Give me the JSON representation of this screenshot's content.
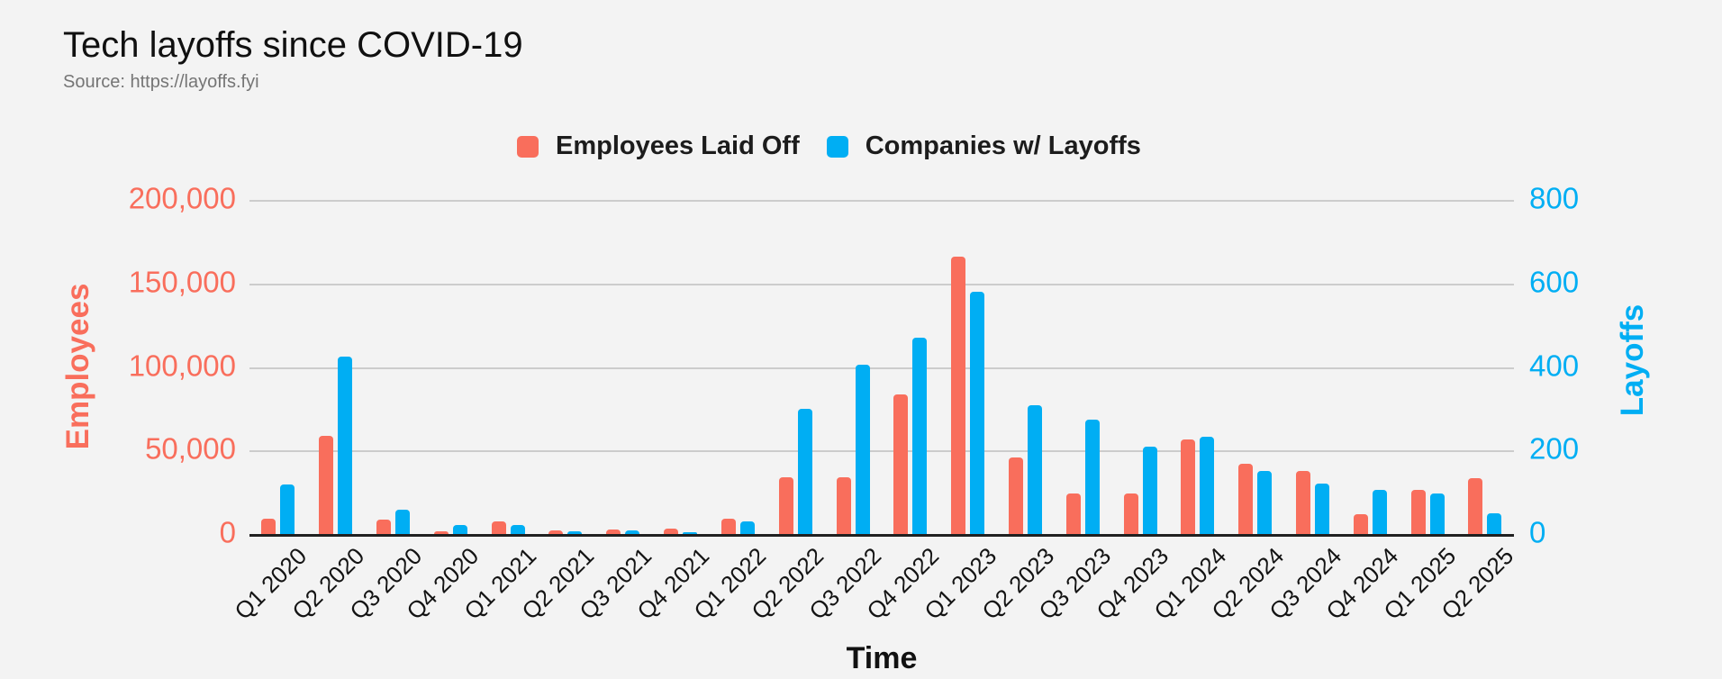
{
  "header": {
    "title": "Tech layoffs since COVID-19",
    "source": "Source: https://layoffs.fyi"
  },
  "colors": {
    "background": "#f3f3f3",
    "employees": "#F96E5C",
    "companies": "#00AEF3",
    "gridline": "#cccccc",
    "baseline": "#202020",
    "text": "#1c1c1c",
    "source_text": "#757575"
  },
  "legend": {
    "items": [
      {
        "label": "Employees Laid Off",
        "color": "#F96E5C"
      },
      {
        "label": "Companies w/ Layoffs",
        "color": "#00AEF3"
      }
    ]
  },
  "chart_data": {
    "type": "bar",
    "title": "Tech layoffs since COVID-19",
    "subtitle": "Source: https://layoffs.fyi",
    "xlabel": "Time",
    "grid": true,
    "legend_position": "top",
    "categories": [
      "Q1 2020",
      "Q2 2020",
      "Q3 2020",
      "Q4 2020",
      "Q1 2021",
      "Q2 2021",
      "Q3 2021",
      "Q4 2021",
      "Q1 2022",
      "Q2 2022",
      "Q3 2022",
      "Q4 2022",
      "Q1 2023",
      "Q2 2023",
      "Q3 2023",
      "Q4 2023",
      "Q1 2024",
      "Q2 2024",
      "Q3 2024",
      "Q4 2024",
      "Q1 2025",
      "Q2 2025"
    ],
    "y_left": {
      "label": "Employees",
      "color": "#F96E5C",
      "min": 0,
      "max": 200000,
      "ticks": [
        "200,000",
        "150,000",
        "100,000",
        "50,000",
        "0"
      ]
    },
    "y_right": {
      "label": "Layoffs",
      "color": "#00AEF3",
      "min": 0,
      "max": 800,
      "ticks": [
        "800",
        "600",
        "400",
        "200",
        "0"
      ]
    },
    "series": [
      {
        "name": "Employees Laid Off",
        "axis": "left",
        "color": "#F96E5C",
        "values": [
          9000,
          58600,
          8700,
          1400,
          7500,
          2400,
          2500,
          3000,
          9400,
          34000,
          34000,
          83500,
          166000,
          45700,
          24200,
          24200,
          56500,
          42000,
          37600,
          11800,
          26300,
          33300
        ]
      },
      {
        "name": "Companies w/ Layoffs",
        "axis": "right",
        "color": "#00AEF3",
        "values": [
          118,
          424,
          58,
          22,
          21,
          6,
          9,
          4,
          31,
          300,
          406,
          471,
          580,
          308,
          273,
          209,
          234,
          152,
          120,
          105,
          97,
          49
        ]
      }
    ]
  }
}
